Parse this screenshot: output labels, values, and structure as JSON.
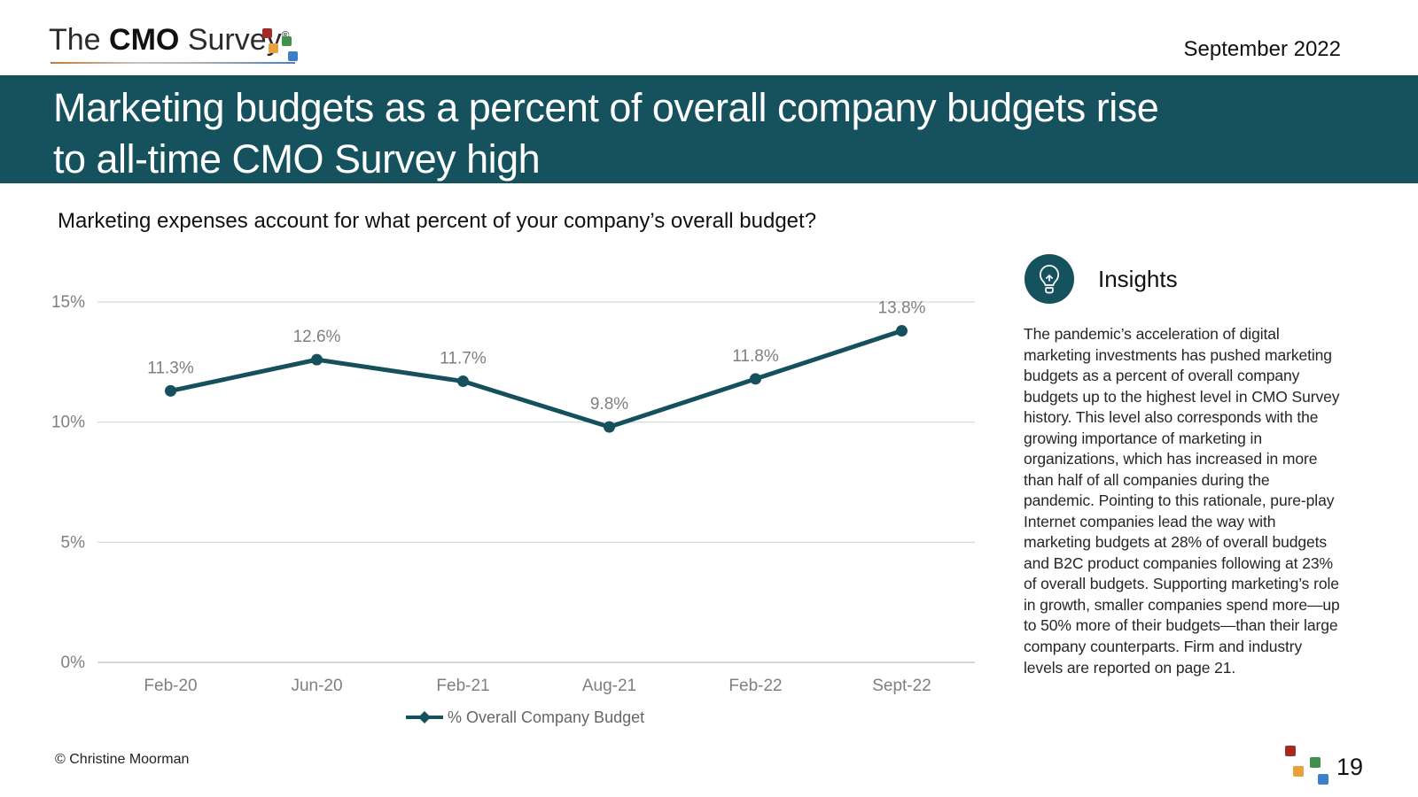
{
  "header": {
    "logo": {
      "the": "The ",
      "cmo": "CMO",
      "survey": " Survey",
      "reg": "®"
    },
    "date": "September 2022"
  },
  "banner": {
    "title_line1": "Marketing budgets as a percent of overall company budgets rise",
    "title_line2": "to all-time CMO Survey high"
  },
  "question": "Marketing expenses account for what percent of your company’s overall budget?",
  "chart_data": {
    "type": "line",
    "title": "Marketing budgets as a percent of overall company budgets",
    "categories": [
      "Feb-20",
      "Jun-20",
      "Feb-21",
      "Aug-21",
      "Feb-22",
      "Sept-22"
    ],
    "series": [
      {
        "name": "% Overall Company Budget",
        "values": [
          11.3,
          12.6,
          11.7,
          9.8,
          11.8,
          13.8
        ]
      }
    ],
    "data_labels": [
      "11.3%",
      "12.6%",
      "11.7%",
      "9.8%",
      "11.8%",
      "13.8%"
    ],
    "y_ticks": [
      0,
      5,
      10,
      15
    ],
    "y_tick_labels": [
      "0%",
      "5%",
      "10%",
      "15%"
    ],
    "ylim": [
      0,
      15
    ],
    "grid": true,
    "legend_position": "bottom",
    "line_color": "#15505c",
    "tick_label_color": "#7f7f7f",
    "legend_label_color": "#666666",
    "gridline_color": "#d6d6d6"
  },
  "insights": {
    "title": "Insights",
    "icon": "lightbulb-icon",
    "body": "The pandemic’s acceleration of digital marketing investments has pushed marketing budgets as a percent of overall company budgets up to the highest level in CMO Survey history. This level also corresponds with the growing importance of marketing in organizations, which has increased in more than half of all companies during the pandemic. Pointing to this rationale, pure-play Internet companies lead the way with marketing budgets at 28% of overall budgets and B2C product companies following at 23% of overall budgets. Supporting marketing’s role in growth, smaller companies spend more—up to 50% more of their budgets—than their large company counterparts. Firm and industry levels are reported on page 21."
  },
  "footer": {
    "copyright": "© Christine Moorman",
    "page_number": "19"
  },
  "colors": {
    "banner_teal": "#16525e",
    "accent_teal": "#15505c",
    "logo_red": "#a32b26",
    "logo_orange": "#e8a13d",
    "logo_green": "#41904c",
    "logo_blue": "#3d7ec9"
  }
}
